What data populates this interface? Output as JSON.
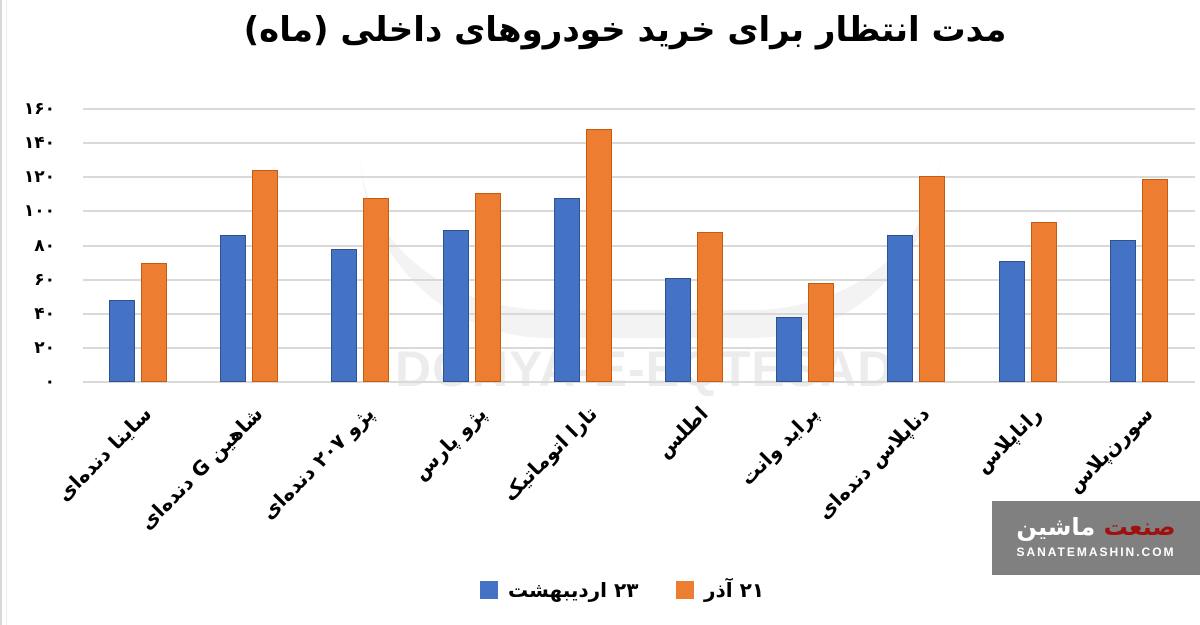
{
  "chart_data": {
    "type": "bar",
    "title": "مدت انتظار برای خرید خودروهای داخلی (ماه)",
    "xlabel": "",
    "ylabel": "",
    "ylim": [
      0,
      160
    ],
    "yticks": [
      "۰",
      "۲۰",
      "۴۰",
      "۶۰",
      "۸۰",
      "۱۰۰",
      "۱۲۰",
      "۱۴۰",
      "۱۶۰"
    ],
    "ytick_values": [
      0,
      20,
      40,
      60,
      80,
      100,
      120,
      140,
      160
    ],
    "grid": true,
    "legend_position": "bottom",
    "categories": [
      "ساینا دنده‌ای",
      "شاهین G دنده‌ای",
      "پژو ۲۰۷ دنده‌ای",
      "پژو پارس",
      "تارا اتوماتیک",
      "اطلس",
      "پراید وانت",
      "دناپلاس دنده‌ای",
      "راناپلاس",
      "سورن‌پلاس"
    ],
    "series": [
      {
        "name": "۲۳ اردیبهشت",
        "color": "#4472c4",
        "values": [
          48,
          86,
          78,
          89,
          108,
          61,
          38,
          86,
          71,
          83
        ]
      },
      {
        "name": "۲۱ آذر",
        "color": "#ed7d31",
        "values": [
          70,
          124,
          108,
          111,
          148,
          88,
          58,
          121,
          94,
          119
        ]
      }
    ]
  },
  "watermark": {
    "text": "DONYA-E-EQTESAD"
  },
  "logo": {
    "fa_red": "صنعت",
    "fa_white": "ماشین",
    "en": "SANATEMASHIN.COM"
  }
}
